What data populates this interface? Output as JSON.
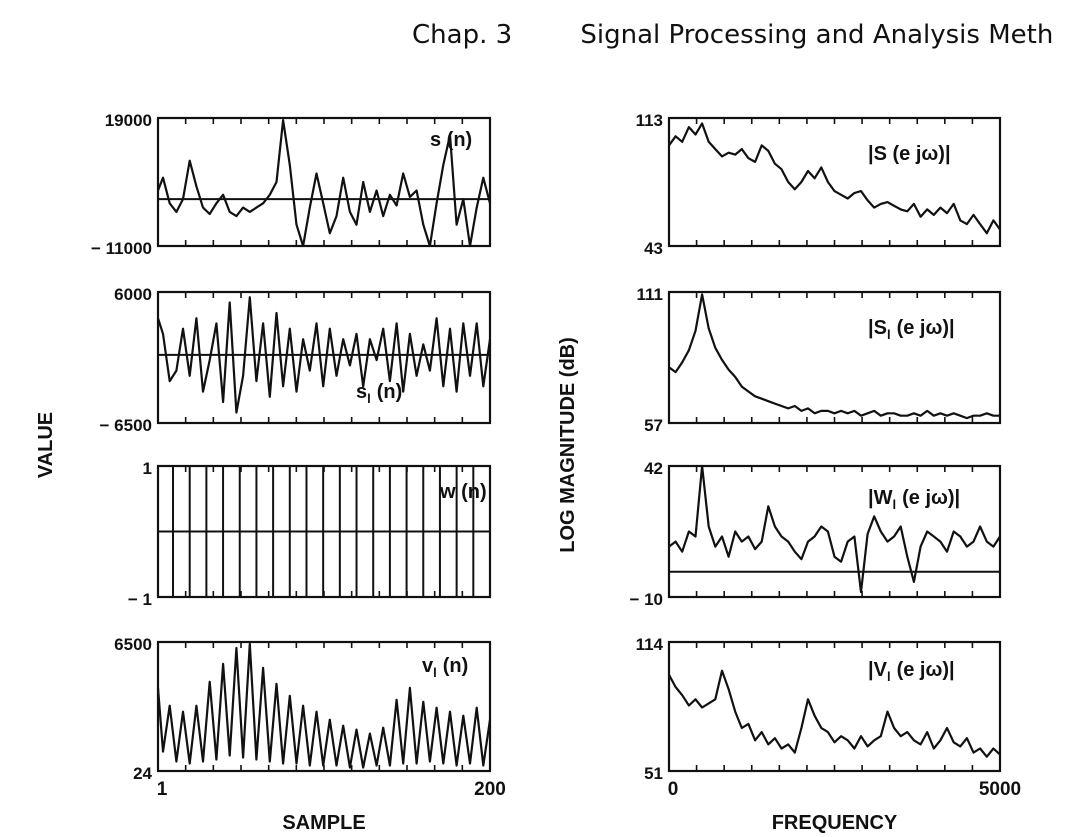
{
  "header": {
    "chapter": "Chap. 3",
    "title": "Signal Processing and Analysis Meth"
  },
  "chart_data": [
    {
      "type": "line",
      "column": "left",
      "label": "s (n)",
      "ylabel": "VALUE",
      "xlabel": "",
      "ylim": [
        -11000,
        19000
      ],
      "xlim": [
        1,
        200
      ],
      "ytick_labels": [
        "19000",
        "− 11000"
      ],
      "xtick_labels": [],
      "baseline": 0,
      "x": [
        1,
        4,
        8,
        12,
        16,
        20,
        24,
        28,
        32,
        36,
        40,
        44,
        48,
        52,
        56,
        60,
        64,
        68,
        72,
        76,
        80,
        84,
        88,
        92,
        96,
        100,
        104,
        108,
        112,
        116,
        120,
        124,
        128,
        132,
        136,
        140,
        144,
        148,
        152,
        156,
        160,
        164,
        168,
        172,
        176,
        180,
        184,
        188,
        192,
        196,
        200
      ],
      "y": [
        2000,
        5000,
        -1000,
        -3000,
        0,
        9000,
        3000,
        -2000,
        -3500,
        -1000,
        1000,
        -3000,
        -4000,
        -2000,
        -3000,
        -2000,
        -1000,
        1000,
        4000,
        18500,
        8000,
        -6000,
        -11000,
        -2000,
        6000,
        -1000,
        -8000,
        -4000,
        5000,
        -3000,
        -6000,
        4000,
        -3000,
        2000,
        -4000,
        1000,
        -1500,
        6000,
        500,
        2000,
        -6000,
        -11000,
        -1000,
        8000,
        15000,
        -6000,
        0,
        -11000,
        -2000,
        5000,
        -1000
      ]
    },
    {
      "type": "line",
      "column": "left",
      "label": "s",
      "label_subscript": "l",
      "label_suffix": "(n)",
      "ylim": [
        -6500,
        6000
      ],
      "xlim": [
        1,
        200
      ],
      "ytick_labels": [
        "6000",
        "− 6500"
      ],
      "xtick_labels": [],
      "baseline": 0,
      "x": [
        1,
        4,
        8,
        12,
        16,
        20,
        24,
        28,
        32,
        36,
        40,
        44,
        48,
        52,
        56,
        60,
        64,
        68,
        72,
        76,
        80,
        84,
        88,
        92,
        96,
        100,
        104,
        108,
        112,
        116,
        120,
        124,
        128,
        132,
        136,
        140,
        144,
        148,
        152,
        156,
        160,
        164,
        168,
        172,
        176,
        180,
        184,
        188,
        192,
        196,
        200
      ],
      "y": [
        3500,
        2000,
        -2500,
        -1500,
        2500,
        -2000,
        3500,
        -3500,
        -500,
        3000,
        -4500,
        5000,
        -5500,
        -2000,
        5500,
        -2500,
        3000,
        -4000,
        4000,
        -3000,
        2500,
        -3500,
        1500,
        -1500,
        3000,
        -3000,
        2500,
        -2000,
        1500,
        -1000,
        2000,
        -3000,
        1500,
        -500,
        2500,
        -2500,
        3000,
        -3500,
        2000,
        -2000,
        1000,
        -1500,
        3500,
        -3000,
        2500,
        -3500,
        3000,
        -2000,
        3000,
        -3000,
        1500
      ]
    },
    {
      "type": "line",
      "column": "left",
      "label": "w (n)",
      "ylim": [
        -1,
        1
      ],
      "xlim": [
        1,
        200
      ],
      "ytick_labels": [
        "1",
        "− 1"
      ],
      "xtick_labels": [],
      "baseline": 0,
      "impulse_x": [
        10,
        20,
        30,
        40,
        50,
        60,
        70,
        80,
        90,
        100,
        110,
        120,
        130,
        140,
        150,
        160,
        170,
        180,
        190,
        200
      ],
      "impulse_y": 1
    },
    {
      "type": "line",
      "column": "left",
      "label": "v",
      "label_subscript": "l",
      "label_suffix": "(n)",
      "ylim": [
        24,
        6500
      ],
      "xlim": [
        1,
        200
      ],
      "ytick_labels": [
        "6500",
        "24"
      ],
      "xtick_labels": [
        "1",
        "200"
      ],
      "xlabel": "SAMPLE",
      "x": [
        1,
        4,
        8,
        12,
        16,
        20,
        24,
        28,
        32,
        36,
        40,
        44,
        48,
        52,
        56,
        60,
        64,
        68,
        72,
        76,
        80,
        84,
        88,
        92,
        96,
        100,
        104,
        108,
        112,
        116,
        120,
        124,
        128,
        132,
        136,
        140,
        144,
        148,
        152,
        156,
        160,
        164,
        168,
        172,
        176,
        180,
        184,
        188,
        192,
        196,
        200
      ],
      "y": [
        4200,
        1000,
        3300,
        500,
        3000,
        400,
        3300,
        500,
        4500,
        600,
        5400,
        800,
        6200,
        700,
        6400,
        600,
        5200,
        500,
        4400,
        400,
        3800,
        400,
        3300,
        300,
        3000,
        300,
        2600,
        300,
        2300,
        200,
        2100,
        200,
        1900,
        300,
        2200,
        300,
        3600,
        400,
        4200,
        400,
        3500,
        500,
        3200,
        400,
        3000,
        300,
        2800,
        400,
        3200,
        300,
        2600
      ]
    },
    {
      "type": "line",
      "column": "right",
      "label": "|S (e jω)|",
      "ylabel": "LOG MAGNITUDE (dB)",
      "xlabel": "",
      "ylim": [
        43,
        113
      ],
      "xlim": [
        0,
        5000
      ],
      "ytick_labels": [
        "113",
        "43"
      ],
      "xtick_labels": [],
      "x": [
        0,
        100,
        200,
        300,
        400,
        500,
        600,
        700,
        800,
        900,
        1000,
        1100,
        1200,
        1300,
        1400,
        1500,
        1600,
        1700,
        1800,
        1900,
        2000,
        2100,
        2200,
        2300,
        2400,
        2500,
        2600,
        2700,
        2800,
        2900,
        3000,
        3100,
        3200,
        3300,
        3400,
        3500,
        3600,
        3700,
        3800,
        3900,
        4000,
        4100,
        4200,
        4300,
        4400,
        4500,
        4600,
        4700,
        4800,
        4900,
        5000
      ],
      "y": [
        98,
        103,
        100,
        108,
        104,
        110,
        100,
        96,
        92,
        94,
        93,
        96,
        91,
        89,
        98,
        95,
        88,
        85,
        78,
        74,
        78,
        84,
        80,
        86,
        78,
        73,
        71,
        69,
        72,
        73,
        68,
        64,
        66,
        67,
        65,
        63,
        62,
        66,
        59,
        63,
        60,
        64,
        61,
        66,
        57,
        55,
        60,
        55,
        50,
        57,
        52
      ]
    },
    {
      "type": "line",
      "column": "right",
      "label": "|S",
      "label_subscript": "l",
      "label_suffix": "(e jω)|",
      "ylim": [
        57,
        111
      ],
      "xlim": [
        0,
        5000
      ],
      "ytick_labels": [
        "111",
        "57"
      ],
      "xtick_labels": [],
      "x": [
        0,
        100,
        200,
        300,
        400,
        500,
        600,
        700,
        800,
        900,
        1000,
        1100,
        1200,
        1300,
        1400,
        1500,
        1600,
        1700,
        1800,
        1900,
        2000,
        2100,
        2200,
        2300,
        2400,
        2500,
        2600,
        2700,
        2800,
        2900,
        3000,
        3100,
        3200,
        3300,
        3400,
        3500,
        3600,
        3700,
        3800,
        3900,
        4000,
        4100,
        4200,
        4300,
        4400,
        4500,
        4600,
        4700,
        4800,
        4900,
        5000
      ],
      "y": [
        80,
        78,
        82,
        87,
        95,
        110,
        96,
        88,
        83,
        79,
        76,
        72,
        70,
        68,
        67,
        66,
        65,
        64,
        63,
        64,
        62,
        63,
        61,
        62,
        62,
        61,
        62,
        61,
        62,
        60,
        61,
        62,
        60,
        61,
        61,
        60,
        60,
        61,
        60,
        62,
        60,
        61,
        60,
        61,
        60,
        59,
        60,
        60,
        61,
        60,
        60
      ]
    },
    {
      "type": "line",
      "column": "right",
      "label": "|W",
      "label_subscript": "l",
      "label_suffix": "(e jω)|",
      "ylim": [
        -10,
        42
      ],
      "xlim": [
        0,
        5000
      ],
      "ytick_labels": [
        "42",
        "− 10"
      ],
      "xtick_labels": [],
      "baseline": 0,
      "x": [
        0,
        100,
        200,
        300,
        400,
        500,
        600,
        700,
        800,
        900,
        1000,
        1100,
        1200,
        1300,
        1400,
        1500,
        1600,
        1700,
        1800,
        1900,
        2000,
        2100,
        2200,
        2300,
        2400,
        2500,
        2600,
        2700,
        2800,
        2900,
        3000,
        3100,
        3200,
        3300,
        3400,
        3500,
        3600,
        3700,
        3800,
        3900,
        4000,
        4100,
        4200,
        4300,
        4400,
        4500,
        4600,
        4700,
        4800,
        4900,
        5000
      ],
      "y": [
        10,
        12,
        8,
        16,
        14,
        42,
        18,
        10,
        14,
        6,
        16,
        12,
        14,
        9,
        12,
        26,
        18,
        14,
        12,
        8,
        5,
        12,
        14,
        18,
        16,
        6,
        4,
        12,
        14,
        -8,
        15,
        22,
        16,
        12,
        14,
        18,
        6,
        -4,
        10,
        16,
        14,
        12,
        8,
        16,
        14,
        10,
        12,
        18,
        12,
        10,
        14
      ]
    },
    {
      "type": "line",
      "column": "right",
      "label": "|V",
      "label_subscript": "l",
      "label_suffix": "(e jω)|",
      "ylim": [
        51,
        114
      ],
      "xlim": [
        0,
        5000
      ],
      "ytick_labels": [
        "114",
        "51"
      ],
      "xtick_labels": [
        "0",
        "5000"
      ],
      "xlabel": "FREQUENCY",
      "x": [
        0,
        100,
        200,
        300,
        400,
        500,
        600,
        700,
        800,
        900,
        1000,
        1100,
        1200,
        1300,
        1400,
        1500,
        1600,
        1700,
        1800,
        1900,
        2000,
        2100,
        2200,
        2300,
        2400,
        2500,
        2600,
        2700,
        2800,
        2900,
        3000,
        3100,
        3200,
        3300,
        3400,
        3500,
        3600,
        3700,
        3800,
        3900,
        4000,
        4100,
        4200,
        4300,
        4400,
        4500,
        4600,
        4700,
        4800,
        4900,
        5000
      ],
      "y": [
        98,
        92,
        88,
        83,
        86,
        82,
        84,
        86,
        100,
        91,
        80,
        72,
        74,
        66,
        70,
        64,
        67,
        62,
        64,
        60,
        72,
        86,
        78,
        72,
        70,
        65,
        68,
        66,
        62,
        68,
        63,
        66,
        68,
        80,
        72,
        68,
        70,
        66,
        64,
        70,
        62,
        66,
        72,
        65,
        63,
        67,
        60,
        62,
        58,
        62,
        59
      ]
    }
  ]
}
